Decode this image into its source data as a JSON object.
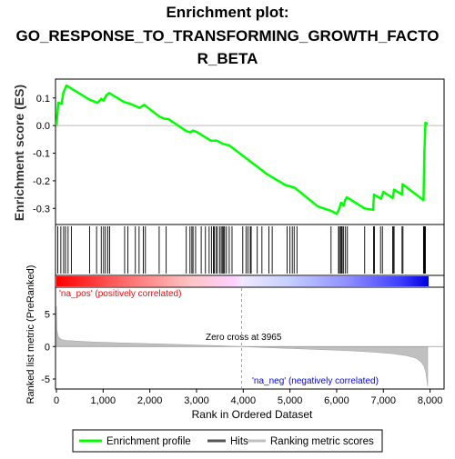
{
  "chart_data": {
    "type": "line",
    "title_lines": [
      "Enrichment plot:",
      "GO_RESPONSE_TO_TRANSFORMING_GROWTH_FACTO",
      "R_BETA"
    ],
    "top_panel": {
      "ylabel": "Enrichment score (ES)",
      "ylim": [
        -0.355,
        0.165
      ],
      "yticks": [
        -0.3,
        -0.2,
        -0.1,
        0.0,
        0.1
      ],
      "ytick_labels": [
        "-0.3",
        "-0.2",
        "-0.1",
        "0.0",
        "0.1"
      ],
      "series": [
        {
          "name": "Enrichment profile",
          "color": "#00ff00",
          "x": [
            0,
            40,
            110,
            150,
            215,
            700,
            880,
            960,
            1010,
            1070,
            1130,
            1450,
            1560,
            1700,
            1780,
            1880,
            2200,
            2310,
            2400,
            2780,
            2870,
            2920,
            3000,
            3310,
            3440,
            3560,
            3700,
            4000,
            4500,
            4900,
            5100,
            5600,
            5900,
            6000,
            6060,
            6090,
            6110,
            6150,
            6180,
            6220,
            6600,
            6780,
            6800,
            6950,
            7000,
            7200,
            7230,
            7400,
            7410,
            7860,
            7870,
            7880,
            7890,
            7900,
            7950
          ],
          "y": [
            0.0,
            0.083,
            0.078,
            0.12,
            0.145,
            0.095,
            0.082,
            0.097,
            0.09,
            0.11,
            0.118,
            0.085,
            0.08,
            0.07,
            0.064,
            0.075,
            0.033,
            0.025,
            0.023,
            -0.02,
            -0.025,
            -0.018,
            -0.023,
            -0.055,
            -0.055,
            -0.066,
            -0.072,
            -0.11,
            -0.175,
            -0.215,
            -0.225,
            -0.293,
            -0.31,
            -0.32,
            -0.3,
            -0.28,
            -0.28,
            -0.29,
            -0.27,
            -0.26,
            -0.3,
            -0.305,
            -0.25,
            -0.265,
            -0.24,
            -0.262,
            -0.232,
            -0.25,
            -0.212,
            -0.27,
            -0.18,
            -0.09,
            -0.04,
            0.01,
            0.005
          ]
        }
      ]
    },
    "hits": {
      "name": "Hits",
      "positions": [
        30,
        95,
        155,
        195,
        250,
        320,
        710,
        860,
        960,
        1010,
        1050,
        1100,
        1140,
        1460,
        1530,
        1690,
        1770,
        1860,
        1905,
        2200,
        2350,
        2780,
        2860,
        2900,
        2925,
        2980,
        3100,
        3190,
        3270,
        3320,
        3360,
        3380,
        3420,
        3450,
        3500,
        3530,
        3560,
        3580,
        3600,
        3640,
        3700,
        3760,
        3990,
        4060,
        4100,
        4150,
        4170,
        4300,
        4400,
        4550,
        4620,
        4940,
        5000,
        5050,
        5090,
        5150,
        5880,
        6040,
        6060,
        6090,
        6110,
        6120,
        6150,
        6190,
        6230,
        6600,
        6790,
        6810,
        6940,
        6980,
        7200,
        7210,
        7230,
        7400,
        7420,
        7860,
        7870,
        7880,
        7890,
        7900
      ]
    },
    "bottom_panel": {
      "ylabel": "Ranked list metric (PreRanked)",
      "ylim": [
        -6.4,
        9.0
      ],
      "yticks": [
        -5,
        0,
        5
      ],
      "ytick_labels": [
        "-5",
        "0",
        "5"
      ],
      "name": "Ranking metric scores",
      "metric_profile": {
        "x": [
          0,
          10,
          40,
          100,
          200,
          400,
          800,
          1500,
          2500,
          3500,
          3965,
          4500,
          5500,
          6200,
          6800,
          7200,
          7500,
          7700,
          7800,
          7870,
          7910,
          7930,
          7950
        ],
        "y": [
          6.2,
          2.6,
          1.5,
          1.1,
          0.95,
          0.85,
          0.7,
          0.55,
          0.35,
          0.12,
          0.0,
          -0.15,
          -0.42,
          -0.62,
          -0.85,
          -1.1,
          -1.4,
          -1.8,
          -2.3,
          -3.0,
          -4.0,
          -5.0,
          -6.2
        ]
      },
      "zero_cross_label": "Zero cross at 3965",
      "zero_cross": 3965,
      "pos_label": "'na_pos' (positively correlated)",
      "neg_label": "'na_neg' (negatively correlated)"
    },
    "xlabel": "Rank in Ordered Dataset",
    "xlim": [
      0,
      8300
    ],
    "xticks": [
      0,
      1000,
      2000,
      3000,
      4000,
      5000,
      6000,
      7000,
      8000
    ],
    "xtick_labels": [
      "0",
      "1,000",
      "2,000",
      "3,000",
      "4,000",
      "5,000",
      "6,000",
      "7,000",
      "8,000"
    ],
    "legend": {
      "placement": "bottom",
      "entries": [
        {
          "label": "Enrichment profile",
          "color": "#00ff00"
        },
        {
          "label": "Hits",
          "color": "#000000"
        },
        {
          "label": "Ranking metric scores",
          "color": "#c0c0c0"
        }
      ]
    },
    "colors": {
      "profile": "#00ff00",
      "pos_label": "#ff0000",
      "neg_label": "#0000ff",
      "metric_fill": "#c0c0c0",
      "zero_line": "#a0a0a0"
    }
  }
}
